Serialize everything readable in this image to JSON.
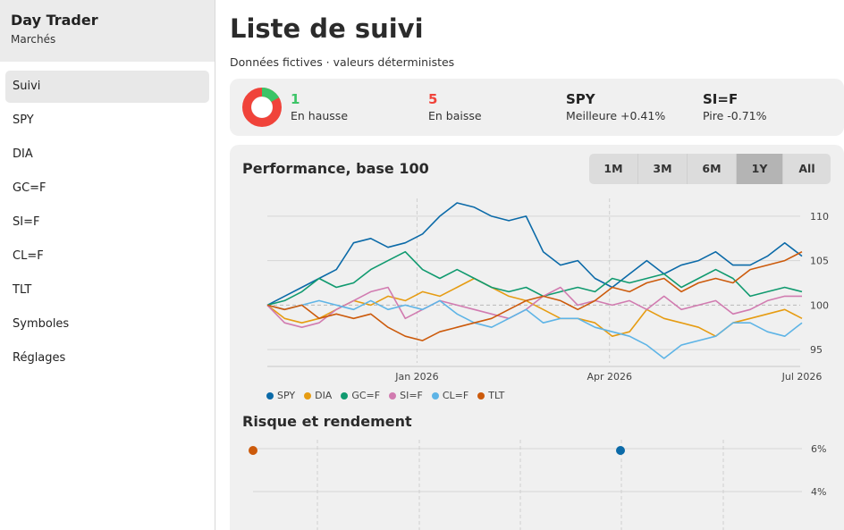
{
  "app": {
    "title": "Day Trader",
    "subtitle": "Marchés"
  },
  "nav": [
    "Suivi",
    "SPY",
    "DIA",
    "GC=F",
    "SI=F",
    "CL=F",
    "TLT",
    "Symboles",
    "Réglages"
  ],
  "page": {
    "title": "Liste de suivi",
    "subtitle": "Données fictives · valeurs déterministes"
  },
  "summary": {
    "up": {
      "value": "1",
      "label": "En hausse"
    },
    "down": {
      "value": "5",
      "label": "En baisse"
    },
    "best": {
      "value": "SPY",
      "label": "Meilleure +0.41%"
    },
    "worst": {
      "value": "SI=F",
      "label": "Pire -0.71%"
    },
    "colors": {
      "up": "#3cc467",
      "down": "#f0433a"
    }
  },
  "performance": {
    "title": "Performance, base 100",
    "ranges": [
      "1M",
      "3M",
      "6M",
      "1Y",
      "All"
    ],
    "active_range": "1Y"
  },
  "risk": {
    "title": "Risque et rendement"
  },
  "chart_data": [
    {
      "type": "line",
      "title": "Performance, base 100",
      "x_ticks": [
        "Jan 2026",
        "Apr 2026",
        "Jul 2026"
      ],
      "y_ticks": [
        95,
        100,
        105,
        110
      ],
      "ylim": [
        93.5,
        112
      ],
      "baseline": 100,
      "legend": "bottom-left",
      "series": [
        {
          "name": "SPY",
          "color": "#0b6aa8",
          "values": [
            100,
            101,
            102,
            103,
            104,
            107,
            107.5,
            106.5,
            107,
            108,
            110,
            111.5,
            111,
            110,
            109.5,
            110,
            106,
            104.5,
            105,
            103,
            102,
            103.5,
            105,
            103.5,
            104.5,
            105,
            106,
            104.5,
            104.5,
            105.5,
            107,
            105.5
          ]
        },
        {
          "name": "DIA",
          "color": "#e69c12",
          "values": [
            100,
            98.5,
            98,
            98.5,
            99.5,
            100.5,
            100,
            101,
            100.5,
            101.5,
            101,
            102,
            103,
            102,
            101,
            100.5,
            99.5,
            98.5,
            98.5,
            98,
            96.5,
            97,
            99.5,
            98.5,
            98,
            97.5,
            96.5,
            98,
            98.5,
            99,
            99.5,
            98.5
          ]
        },
        {
          "name": "GC=F",
          "color": "#109a6f",
          "values": [
            100,
            100.5,
            101.5,
            103,
            102,
            102.5,
            104,
            105,
            106,
            104,
            103,
            104,
            103,
            102,
            101.5,
            102,
            101,
            101.5,
            102,
            101.5,
            103,
            102.5,
            103,
            103.5,
            102,
            103,
            104,
            103,
            101,
            101.5,
            102,
            101.5
          ]
        },
        {
          "name": "SI=F",
          "color": "#d17bb0",
          "values": [
            100,
            98,
            97.5,
            98,
            99.5,
            100.5,
            101.5,
            102,
            98.5,
            99.5,
            100.5,
            100,
            99.5,
            99,
            98.5,
            99.5,
            101,
            102,
            100,
            100.5,
            100,
            100.5,
            99.5,
            101,
            99.5,
            100,
            100.5,
            99,
            99.5,
            100.5,
            101,
            101
          ]
        },
        {
          "name": "CL=F",
          "color": "#5eb4e6",
          "values": [
            100,
            99.5,
            100,
            100.5,
            100,
            99.5,
            100.5,
            99.5,
            100,
            99.5,
            100.5,
            99,
            98,
            97.5,
            98.5,
            99.5,
            98,
            98.5,
            98.5,
            97.5,
            97,
            96.5,
            95.5,
            94,
            95.5,
            96,
            96.5,
            98,
            98,
            97,
            96.5,
            98
          ]
        },
        {
          "name": "TLT",
          "color": "#cc5a0b",
          "values": [
            100,
            99.5,
            100,
            98.5,
            99,
            98.5,
            99,
            97.5,
            96.5,
            96,
            97,
            97.5,
            98,
            98.5,
            99.5,
            100.5,
            101,
            100.5,
            99.5,
            100.5,
            102,
            101.5,
            102.5,
            103,
            101.5,
            102.5,
            103,
            102.5,
            104,
            104.5,
            105,
            106
          ]
        }
      ]
    },
    {
      "type": "scatter",
      "title": "Risque et rendement",
      "y_ticks": [
        "6%",
        "4%"
      ],
      "series": [
        {
          "name": "TLT",
          "color": "#cc5a0b"
        },
        {
          "name": "SPY",
          "color": "#0b6aa8"
        }
      ]
    }
  ]
}
